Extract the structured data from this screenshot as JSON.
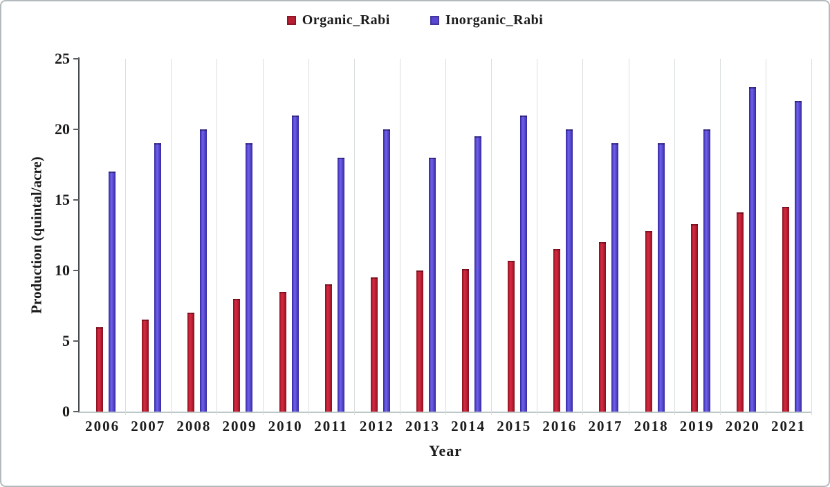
{
  "legend": {
    "items": [
      {
        "label": "Organic_Rabi",
        "color": "#bb1e33"
      },
      {
        "label": "Inorganic_Rabi",
        "color": "#5847d2"
      }
    ]
  },
  "chart_data": {
    "type": "bar",
    "title": "",
    "xlabel": "Year",
    "ylabel": "Production (quintal/acre)",
    "ylim": [
      0,
      25
    ],
    "yticks": [
      0,
      5,
      10,
      15,
      20,
      25
    ],
    "grid": "vertical category separators only",
    "legend_position": "top-center",
    "categories": [
      "2006",
      "2007",
      "2008",
      "2009",
      "2010",
      "2011",
      "2012",
      "2013",
      "2014",
      "2015",
      "2016",
      "2017",
      "2018",
      "2019",
      "2020",
      "2021"
    ],
    "series": [
      {
        "name": "Organic_Rabi",
        "color": "#bb1e33",
        "values": [
          6.0,
          6.5,
          7.0,
          8.0,
          8.5,
          9.0,
          9.5,
          10.0,
          10.1,
          10.7,
          11.5,
          12.0,
          12.8,
          13.3,
          14.1,
          14.5
        ]
      },
      {
        "name": "Inorganic_Rabi",
        "color": "#5847d2",
        "values": [
          17,
          19,
          20,
          19,
          21,
          18,
          20,
          18,
          19.5,
          21,
          20,
          19,
          19,
          20,
          23,
          22
        ]
      }
    ]
  }
}
